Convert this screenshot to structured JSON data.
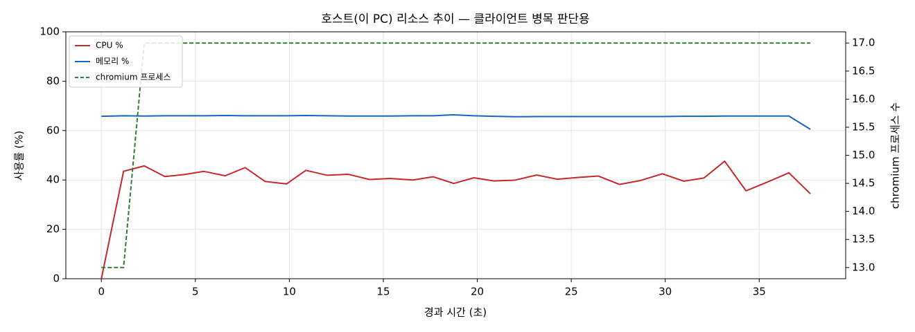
{
  "chart_data": {
    "type": "line",
    "title": "호스트(이 PC) 리소스 추이 — 클라이언트 병목 판단용",
    "xlabel": "경과 시간 (초)",
    "ylabel": "사용률 (%)",
    "y2label": "chromium 프로세스 수",
    "x": [
      0,
      1.18,
      2.28,
      3.38,
      4.41,
      5.44,
      6.58,
      7.65,
      8.71,
      9.85,
      10.88,
      12.02,
      13.13,
      14.26,
      15.37,
      16.58,
      17.65,
      18.75,
      19.82,
      20.88,
      21.99,
      23.16,
      24.26,
      25.33,
      26.43,
      27.57,
      28.64,
      29.85,
      30.99,
      32.06,
      33.16,
      34.3,
      35.48,
      36.58,
      37.72
    ],
    "series": [
      {
        "name": "CPU %",
        "color": "#c62828",
        "dash": false,
        "values": [
          0,
          43.5,
          45.7,
          41.4,
          42.2,
          43.5,
          41.7,
          45.0,
          39.4,
          38.4,
          43.9,
          41.9,
          42.3,
          40.2,
          40.6,
          40.0,
          41.3,
          38.6,
          40.9,
          39.6,
          39.9,
          42.0,
          40.3,
          41.0,
          41.6,
          38.2,
          39.7,
          42.5,
          39.5,
          40.8,
          47.6,
          35.6,
          39.3,
          42.9,
          34.4
        ]
      },
      {
        "name": "메모리 %",
        "color": "#1565c0",
        "dash": false,
        "values": [
          65.8,
          66.0,
          65.9,
          66.0,
          66.0,
          66.0,
          66.1,
          66.0,
          66.0,
          66.0,
          66.1,
          66.0,
          65.9,
          65.9,
          65.9,
          66.0,
          66.0,
          66.4,
          66.0,
          65.8,
          65.6,
          65.7,
          65.7,
          65.7,
          65.7,
          65.7,
          65.7,
          65.7,
          65.8,
          65.8,
          65.9,
          65.9,
          65.9,
          65.9,
          60.5
        ]
      },
      {
        "name": "chromium 프로세스",
        "color": "#2e7d32",
        "dash": true,
        "axis": "y2",
        "values": [
          13,
          13,
          17,
          17,
          17,
          17,
          17,
          17,
          17,
          17,
          17,
          17,
          17,
          17,
          17,
          17,
          17,
          17,
          17,
          17,
          17,
          17,
          17,
          17,
          17,
          17,
          17,
          17,
          17,
          17,
          17,
          17,
          17,
          17,
          17
        ]
      }
    ],
    "xlim": [
      -1.89,
      39.6
    ],
    "xticks": [
      0,
      5,
      10,
      15,
      20,
      25,
      30,
      35
    ],
    "ylim": [
      0,
      100
    ],
    "yticks": [
      0,
      20,
      40,
      60,
      80,
      100
    ],
    "y2lim": [
      12.8,
      17.2
    ],
    "y2ticks": [
      {
        "value": 13,
        "label": "13.0"
      },
      13.5,
      {
        "value": 14,
        "label": "14.0"
      },
      14.5,
      {
        "value": 15,
        "label": "15.0"
      },
      15.5,
      {
        "value": 16,
        "label": "16.0"
      },
      16.5,
      {
        "value": 17,
        "label": "17.0"
      }
    ],
    "grid": true,
    "legend": "upper left"
  }
}
